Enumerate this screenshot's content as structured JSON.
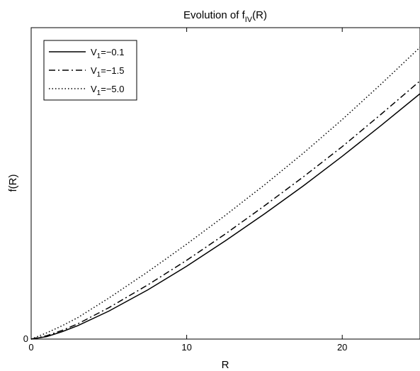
{
  "chart_data": {
    "type": "line",
    "title": {
      "main": "Evolution of f",
      "sub": "IV",
      "tail": "(R)"
    },
    "xlabel": "R",
    "ylabel": "f(R)",
    "xlim": [
      0,
      25
    ],
    "ylim": [
      0,
      1
    ],
    "xticks": [
      0,
      10,
      20
    ],
    "yticks": [
      0
    ],
    "grid": false,
    "legend_position": "top-left",
    "series": [
      {
        "name": {
          "main": "V",
          "sub": "1",
          "tail": "=−0.1"
        },
        "style": "solid",
        "color": "#000000",
        "x": [
          0,
          1,
          2,
          3,
          5,
          7.5,
          10,
          12.5,
          15,
          17.5,
          20,
          22.5,
          25
        ],
        "y": [
          0,
          0.008,
          0.024,
          0.043,
          0.09,
          0.158,
          0.234,
          0.316,
          0.402,
          0.492,
          0.587,
          0.686,
          0.788
        ]
      },
      {
        "name": {
          "main": "V",
          "sub": "1",
          "tail": "=−1.5"
        },
        "style": "dashdot",
        "color": "#000000",
        "x": [
          0,
          1,
          2,
          3,
          5,
          7.5,
          10,
          12.5,
          15,
          17.5,
          20,
          22.5,
          25
        ],
        "y": [
          0,
          0.011,
          0.028,
          0.049,
          0.101,
          0.174,
          0.253,
          0.338,
          0.428,
          0.521,
          0.618,
          0.722,
          0.829
        ]
      },
      {
        "name": {
          "main": "V",
          "sub": "1",
          "tail": "=−5.0"
        },
        "style": "dotted",
        "color": "#000000",
        "x": [
          0,
          1,
          2,
          3,
          5,
          7.5,
          10,
          12.5,
          15,
          17.5,
          20,
          22.5,
          25
        ],
        "y": [
          0,
          0.02,
          0.043,
          0.069,
          0.132,
          0.216,
          0.305,
          0.398,
          0.495,
          0.597,
          0.705,
          0.819,
          0.937
        ]
      }
    ]
  }
}
